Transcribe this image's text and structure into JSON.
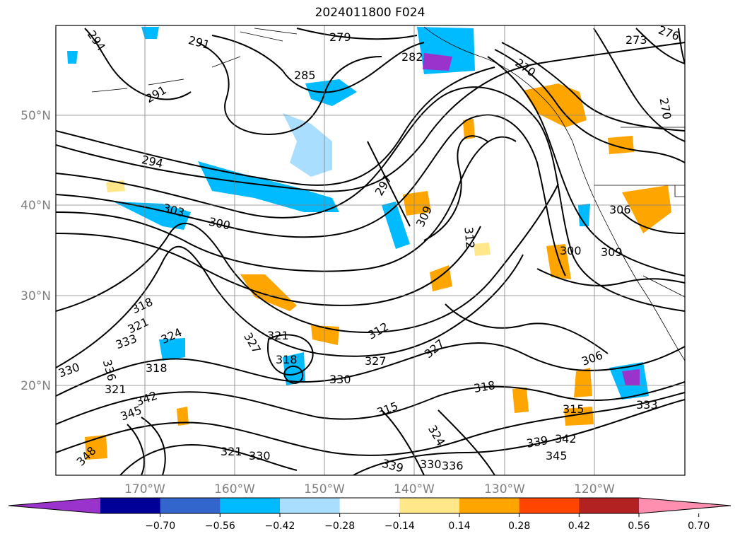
{
  "title": "2024011800 F024",
  "map": {
    "lat_labels": [
      "50°N",
      "40°N",
      "30°N",
      "20°N"
    ],
    "lon_labels": [
      "170°W",
      "160°W",
      "150°W",
      "140°W",
      "130°W",
      "120°W"
    ],
    "contour_labels": [
      "294",
      "291",
      "279",
      "282",
      "270",
      "273",
      "276",
      "285",
      "291",
      "294",
      "270",
      "297",
      "309",
      "312",
      "303",
      "300",
      "306",
      "300",
      "309",
      "318",
      "321",
      "324",
      "333",
      "321",
      "327",
      "318",
      "312",
      "327",
      "330",
      "318",
      "336",
      "321",
      "315",
      "306",
      "315",
      "330",
      "345",
      "342",
      "318",
      "327",
      "321",
      "330",
      "339",
      "336",
      "339",
      "342",
      "345",
      "324",
      "330",
      "348",
      "333"
    ]
  },
  "colorbar": {
    "colors": [
      "#9933cc",
      "#000099",
      "#3366cc",
      "#00bbff",
      "#aadeff",
      "#ffffff",
      "#ffe78a",
      "#ffa500",
      "#ff4500",
      "#b22222",
      "#ff8fb0"
    ],
    "ticks": [
      "−0.70",
      "−0.56",
      "−0.42",
      "−0.28",
      "−0.14",
      "0.14",
      "0.28",
      "0.42",
      "0.56",
      "0.70"
    ]
  }
}
